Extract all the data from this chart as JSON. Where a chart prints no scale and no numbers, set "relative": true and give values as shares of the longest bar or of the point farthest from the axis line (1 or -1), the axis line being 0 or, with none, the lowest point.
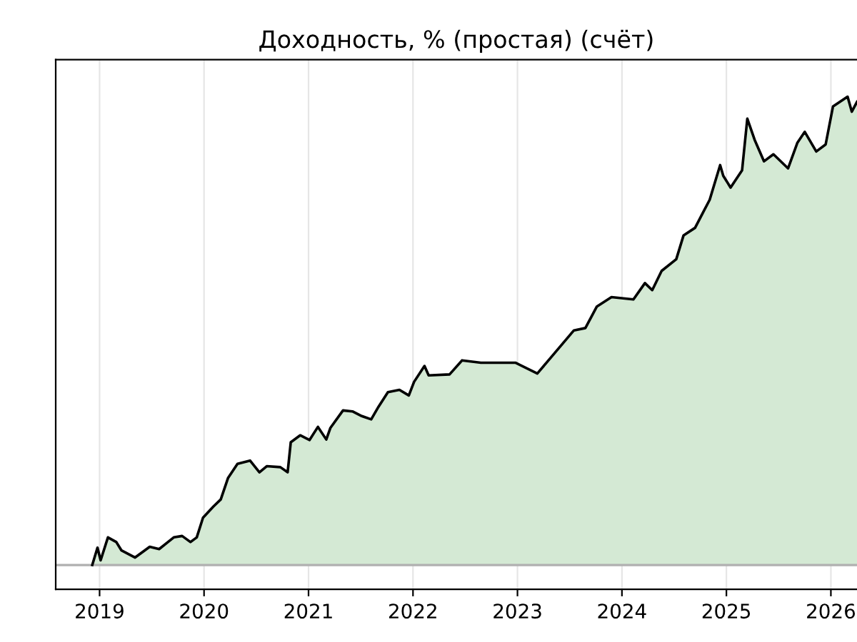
{
  "chart_data": {
    "type": "area",
    "title": "Доходность, % (простая) (счёт)",
    "relative": true,
    "grid": "x",
    "x": [
      2018.93,
      2018.98,
      2019.01,
      2019.08,
      2019.16,
      2019.21,
      2019.34,
      2019.48,
      2019.57,
      2019.71,
      2019.79,
      2019.87,
      2019.93,
      2019.99,
      2020.09,
      2020.16,
      2020.23,
      2020.32,
      2020.44,
      2020.53,
      2020.6,
      2020.73,
      2020.8,
      2020.83,
      2020.92,
      2021.01,
      2021.09,
      2021.17,
      2021.21,
      2021.33,
      2021.42,
      2021.51,
      2021.6,
      2021.67,
      2021.76,
      2021.87,
      2021.96,
      2022.01,
      2022.11,
      2022.15,
      2022.35,
      2022.47,
      2022.65,
      2022.98,
      2023.19,
      2023.54,
      2023.65,
      2023.76,
      2023.9,
      2024.11,
      2024.22,
      2024.29,
      2024.38,
      2024.52,
      2024.59,
      2024.7,
      2024.77,
      2024.84,
      2024.94,
      2024.97,
      2025.04,
      2025.15,
      2025.2,
      2025.27,
      2025.36,
      2025.45,
      2025.59,
      2025.68,
      2025.75,
      2025.86,
      2025.95,
      2026.02,
      2026.16,
      2026.2,
      2026.25
    ],
    "xlim": [
      2018.58,
      2026.25
    ],
    "xticks": [
      2019,
      2020,
      2021,
      2022,
      2023,
      2024,
      2025,
      2026
    ],
    "series": [
      {
        "color": "#d4e9d4",
        "values": [
          0,
          0.037,
          0.01,
          0.059,
          0.049,
          0.031,
          0.016,
          0.039,
          0.034,
          0.059,
          0.062,
          0.049,
          0.059,
          0.101,
          0.125,
          0.14,
          0.186,
          0.216,
          0.223,
          0.198,
          0.211,
          0.209,
          0.198,
          0.262,
          0.277,
          0.267,
          0.295,
          0.268,
          0.293,
          0.33,
          0.328,
          0.318,
          0.311,
          0.338,
          0.369,
          0.374,
          0.362,
          0.391,
          0.425,
          0.405,
          0.407,
          0.437,
          0.432,
          0.432,
          0.409,
          0.501,
          0.506,
          0.552,
          0.572,
          0.567,
          0.602,
          0.587,
          0.628,
          0.653,
          0.704,
          0.72,
          0.75,
          0.78,
          0.854,
          0.831,
          0.806,
          0.843,
          0.953,
          0.908,
          0.862,
          0.877,
          0.847,
          0.902,
          0.925,
          0.883,
          0.898,
          0.979,
          1.0,
          0.968,
          0.989
        ]
      }
    ],
    "ref_lines": [
      {
        "axis": "y",
        "value": 0,
        "color": "#b0b0b0"
      }
    ]
  }
}
